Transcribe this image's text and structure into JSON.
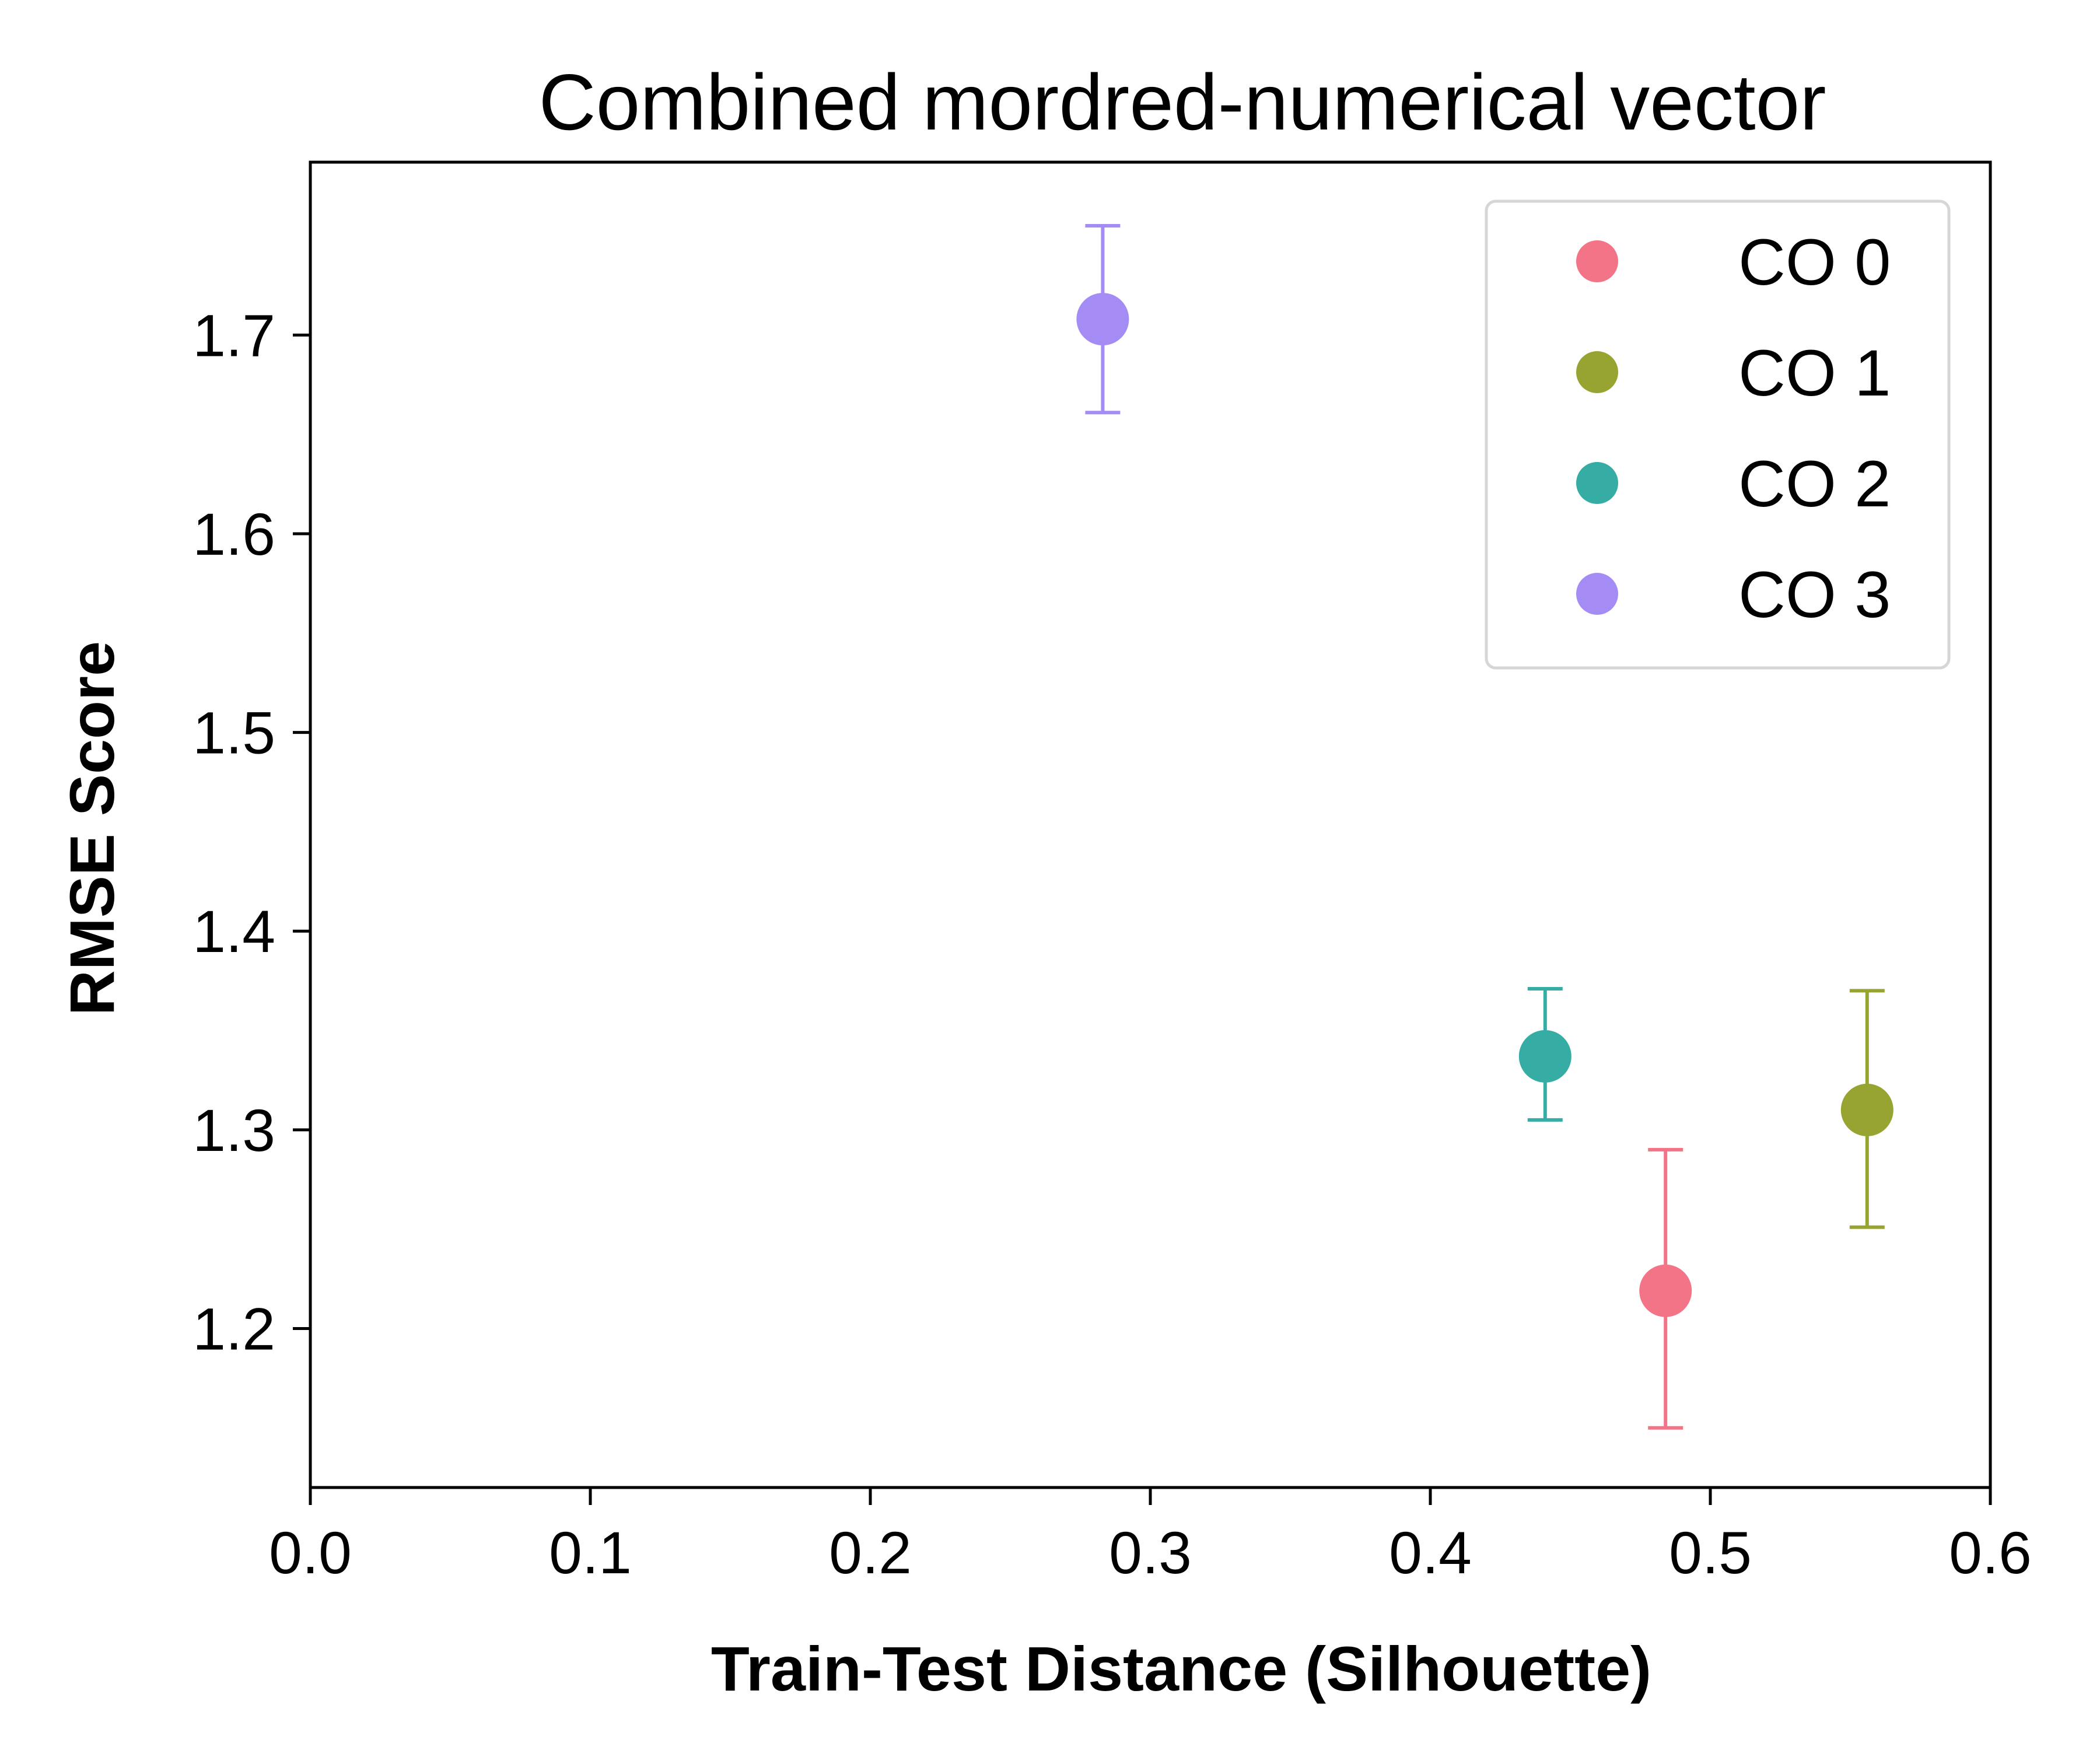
{
  "chart_data": {
    "type": "scatter",
    "title": "Combined mordred-numerical vector",
    "xlabel": "Train-Test Distance (Silhouette)",
    "ylabel": "RMSE Score",
    "xlim": [
      0.0,
      0.6
    ],
    "ylim": [
      1.12,
      1.787
    ],
    "xticks": [
      0.0,
      0.1,
      0.2,
      0.3,
      0.4,
      0.5,
      0.6
    ],
    "xtick_labels": [
      "0.0",
      "0.1",
      "0.2",
      "0.3",
      "0.4",
      "0.5",
      "0.6"
    ],
    "yticks": [
      1.2,
      1.3,
      1.4,
      1.5,
      1.6,
      1.7
    ],
    "ytick_labels": [
      "1.2",
      "1.3",
      "1.4",
      "1.5",
      "1.6",
      "1.7"
    ],
    "grid": false,
    "legend_position": "top-right",
    "series": [
      {
        "name": "CO 0",
        "color": "#f37387",
        "x": 0.484,
        "y": 1.219,
        "err_low": 1.15,
        "err_high": 1.29
      },
      {
        "name": "CO 1",
        "color": "#97a431",
        "x": 0.556,
        "y": 1.31,
        "err_low": 1.251,
        "err_high": 1.37
      },
      {
        "name": "CO 2",
        "color": "#36ada4",
        "x": 0.441,
        "y": 1.337,
        "err_low": 1.305,
        "err_high": 1.371
      },
      {
        "name": "CO 3",
        "color": "#a48cf4",
        "x": 0.283,
        "y": 1.708,
        "err_low": 1.661,
        "err_high": 1.755
      }
    ]
  }
}
